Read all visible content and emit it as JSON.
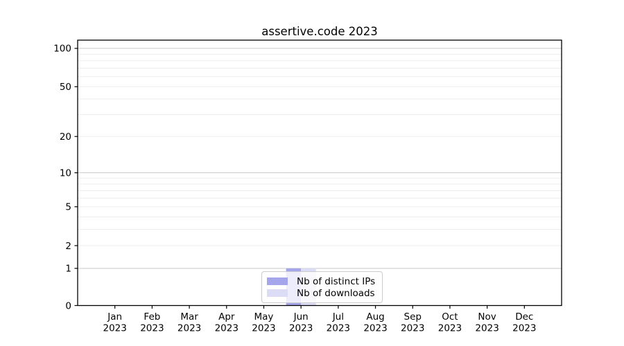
{
  "chart_data": {
    "type": "bar",
    "title": "assertive.code 2023",
    "xlabel": "",
    "ylabel": "",
    "categories": [
      "Jan",
      "Feb",
      "Mar",
      "Apr",
      "May",
      "Jun",
      "Jul",
      "Aug",
      "Sep",
      "Oct",
      "Nov",
      "Dec"
    ],
    "year_label": "2023",
    "series": [
      {
        "name": "Nb of distinct IPs",
        "color": "#a5a5eb",
        "values": [
          0,
          0,
          0,
          0,
          0,
          1,
          0,
          0,
          0,
          0,
          0,
          0
        ]
      },
      {
        "name": "Nb of downloads",
        "color": "#dcdcf6",
        "values": [
          0,
          0,
          0,
          0,
          0,
          1,
          0,
          0,
          0,
          0,
          0,
          0
        ]
      }
    ],
    "scale": "log1p",
    "ylim": [
      0,
      116
    ],
    "y_ticks": [
      0,
      1,
      2,
      5,
      10,
      20,
      50,
      100
    ],
    "y_major_gridlines": [
      1,
      10,
      100
    ],
    "y_minor_gridlines": [
      2,
      3,
      4,
      5,
      6,
      7,
      8,
      9,
      20,
      30,
      40,
      50,
      60,
      70,
      80,
      90
    ],
    "grid": {
      "minor_color": "#ededed",
      "major_color": "#c9c9c9"
    },
    "legend_position": "lower center",
    "colors": {
      "axis": "#000000",
      "text": "#000000",
      "background": "#ffffff",
      "legend_border": "#cccccc"
    }
  }
}
